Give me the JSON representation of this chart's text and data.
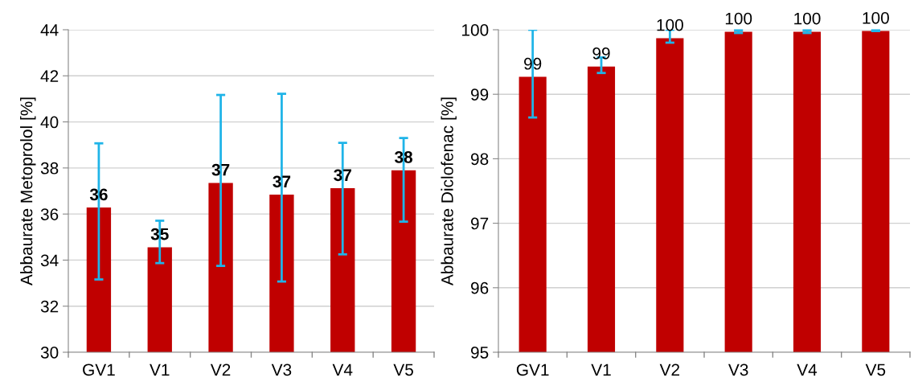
{
  "chart_data": [
    {
      "type": "bar",
      "ylabel": "Abbaurate Metoprolol [%]",
      "categories": [
        "GV1",
        "V1",
        "V2",
        "V3",
        "V4",
        "V5"
      ],
      "values": [
        36.28,
        34.56,
        37.35,
        36.84,
        37.12,
        37.9
      ],
      "color": "#c00000",
      "errors": [
        [
          33.16,
          39.07
        ],
        [
          33.87,
          35.71
        ],
        [
          33.75,
          41.17
        ],
        [
          33.07,
          41.22
        ],
        [
          34.25,
          39.09
        ],
        [
          35.67,
          39.3
        ]
      ],
      "value_labels": [
        "36",
        "35",
        "37",
        "37",
        "37",
        "38"
      ],
      "ylim": [
        30,
        44
      ],
      "yticks": [
        30,
        32,
        34,
        36,
        38,
        40,
        42,
        44
      ],
      "grid": "y"
    },
    {
      "type": "bar",
      "ylabel": "Abbaurate Diclofenac [%]",
      "categories": [
        "GV1",
        "V1",
        "V2",
        "V3",
        "V4",
        "V5"
      ],
      "values": [
        99.27,
        99.43,
        99.87,
        99.97,
        99.97,
        99.98
      ],
      "color": "#c00000",
      "errors": [
        [
          98.64,
          100
        ],
        [
          99.33,
          99.57
        ],
        [
          99.8,
          100
        ],
        [
          99.95,
          99.99
        ],
        [
          99.95,
          99.99
        ],
        [
          99.98,
          99.99
        ]
      ],
      "value_labels": [
        "99",
        "99",
        "100",
        "100",
        "100",
        "100"
      ],
      "ylim": [
        95,
        100
      ],
      "yticks": [
        95,
        96,
        97,
        98,
        99,
        100
      ],
      "grid": "y"
    }
  ]
}
